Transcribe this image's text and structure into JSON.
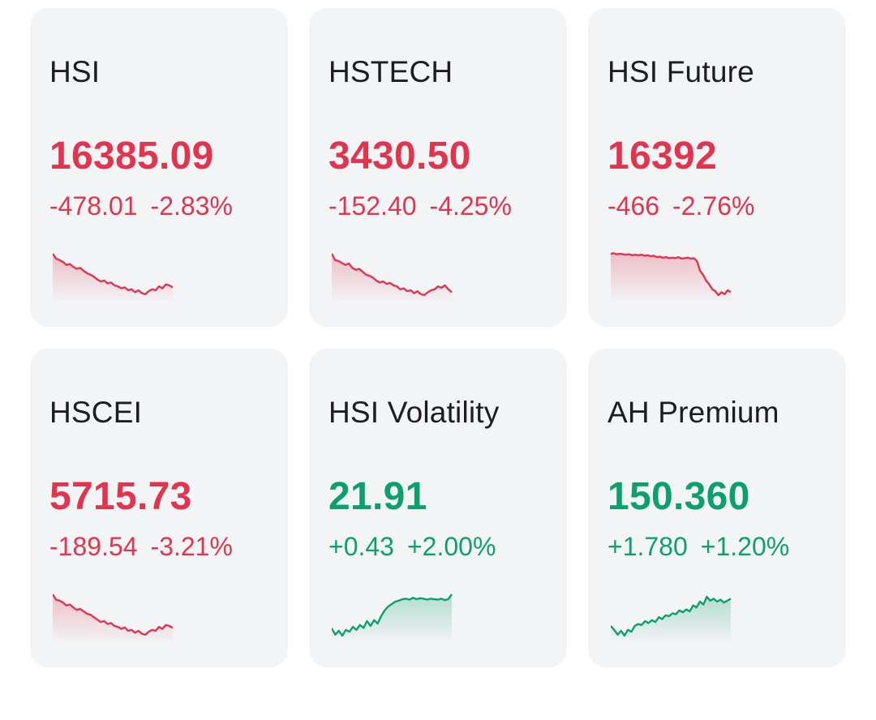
{
  "colors": {
    "down": "#e0344f",
    "up": "#0ea06a",
    "card_bg": "#f3f4f6"
  },
  "cards": [
    {
      "name": "HSI",
      "price": "16385.09",
      "change": "-478.01",
      "change_pct": "-2.83%",
      "direction": "down",
      "spark": [
        0.95,
        0.85,
        0.82,
        0.78,
        0.72,
        0.74,
        0.68,
        0.64,
        0.66,
        0.6,
        0.55,
        0.52,
        0.48,
        0.42,
        0.38,
        0.4,
        0.34,
        0.36,
        0.3,
        0.28,
        0.24,
        0.26,
        0.2,
        0.22,
        0.16,
        0.2,
        0.14,
        0.12,
        0.18,
        0.22,
        0.2,
        0.28,
        0.24,
        0.32,
        0.3,
        0.26
      ]
    },
    {
      "name": "HSTECH",
      "price": "3430.50",
      "change": "-152.40",
      "change_pct": "-4.25%",
      "direction": "down",
      "spark": [
        0.95,
        0.82,
        0.8,
        0.76,
        0.72,
        0.75,
        0.66,
        0.62,
        0.64,
        0.58,
        0.52,
        0.5,
        0.46,
        0.4,
        0.36,
        0.38,
        0.33,
        0.35,
        0.3,
        0.28,
        0.22,
        0.24,
        0.18,
        0.2,
        0.14,
        0.18,
        0.12,
        0.1,
        0.16,
        0.2,
        0.22,
        0.28,
        0.25,
        0.3,
        0.22,
        0.16
      ]
    },
    {
      "name": "HSI Future",
      "price": "16392",
      "change": "-466",
      "change_pct": "-2.76%",
      "direction": "down",
      "spark": [
        0.95,
        0.96,
        0.94,
        0.95,
        0.94,
        0.93,
        0.94,
        0.92,
        0.93,
        0.92,
        0.93,
        0.91,
        0.92,
        0.9,
        0.91,
        0.88,
        0.89,
        0.87,
        0.88,
        0.86,
        0.87,
        0.86,
        0.88,
        0.85,
        0.86,
        0.87,
        0.85,
        0.86,
        0.8,
        0.6,
        0.52,
        0.4,
        0.32,
        0.22,
        0.18,
        0.1,
        0.16,
        0.12,
        0.2,
        0.16
      ]
    },
    {
      "name": "HSCEI",
      "price": "5715.73",
      "change": "-189.54",
      "change_pct": "-3.21%",
      "direction": "down",
      "spark": [
        0.95,
        0.84,
        0.82,
        0.78,
        0.72,
        0.74,
        0.68,
        0.63,
        0.65,
        0.6,
        0.55,
        0.53,
        0.48,
        0.43,
        0.38,
        0.4,
        0.34,
        0.36,
        0.3,
        0.28,
        0.24,
        0.27,
        0.2,
        0.22,
        0.16,
        0.2,
        0.14,
        0.12,
        0.18,
        0.22,
        0.2,
        0.28,
        0.24,
        0.32,
        0.3,
        0.26
      ]
    },
    {
      "name": "HSI Volatility",
      "price": "21.91",
      "change": "+0.43",
      "change_pct": "+2.00%",
      "direction": "up",
      "spark": [
        0.25,
        0.12,
        0.2,
        0.1,
        0.22,
        0.18,
        0.28,
        0.22,
        0.32,
        0.26,
        0.4,
        0.3,
        0.42,
        0.35,
        0.5,
        0.62,
        0.7,
        0.75,
        0.8,
        0.82,
        0.85,
        0.86,
        0.84,
        0.88,
        0.85,
        0.87,
        0.86,
        0.84,
        0.86,
        0.85,
        0.84,
        0.86,
        0.83,
        0.85,
        0.95
      ]
    },
    {
      "name": "AH Premium",
      "price": "150.360",
      "change": "+1.780",
      "change_pct": "+1.20%",
      "direction": "up",
      "spark": [
        0.3,
        0.22,
        0.12,
        0.2,
        0.1,
        0.22,
        0.18,
        0.3,
        0.34,
        0.32,
        0.4,
        0.36,
        0.42,
        0.38,
        0.48,
        0.44,
        0.52,
        0.5,
        0.56,
        0.54,
        0.62,
        0.58,
        0.64,
        0.6,
        0.72,
        0.68,
        0.8,
        0.74,
        0.9,
        0.82,
        0.86,
        0.8,
        0.84,
        0.78,
        0.82,
        0.86
      ]
    }
  ]
}
